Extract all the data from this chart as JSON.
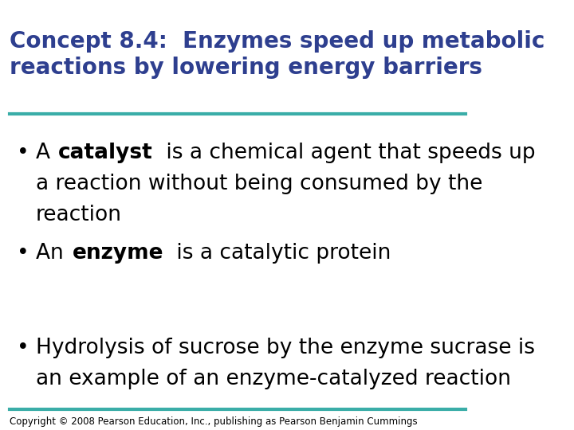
{
  "title_line1": "Concept 8.4:  Enzymes speed up metabolic",
  "title_line2": "reactions by lowering energy barriers",
  "title_color": "#2E3F8F",
  "title_fontsize": 20,
  "title_fontstyle": "bold",
  "separator_color": "#3AADA8",
  "separator_lw": 3,
  "bg_color": "#FFFFFF",
  "bullet_color": "#000000",
  "bullet_fontsize": 19,
  "bullets": [
    {
      "parts": [
        {
          "text": "A ",
          "bold": false
        },
        {
          "text": "catalyst",
          "bold": true
        },
        {
          "text": " is a chemical agent that speeds up\na reaction without being consumed by the\nreaction",
          "bold": false
        }
      ]
    },
    {
      "parts": [
        {
          "text": "An ",
          "bold": false
        },
        {
          "text": "enzyme",
          "bold": true
        },
        {
          "text": " is a catalytic protein",
          "bold": false
        }
      ]
    },
    {
      "parts": [
        {
          "text": "Hydrolysis of sucrose by the enzyme sucrase is\nan example of an enzyme-catalyzed reaction",
          "bold": false
        }
      ]
    }
  ],
  "footer_text": "Copyright © 2008 Pearson Education, Inc., publishing as Pearson Benjamin Cummings",
  "footer_fontsize": 8.5,
  "footer_color": "#000000"
}
